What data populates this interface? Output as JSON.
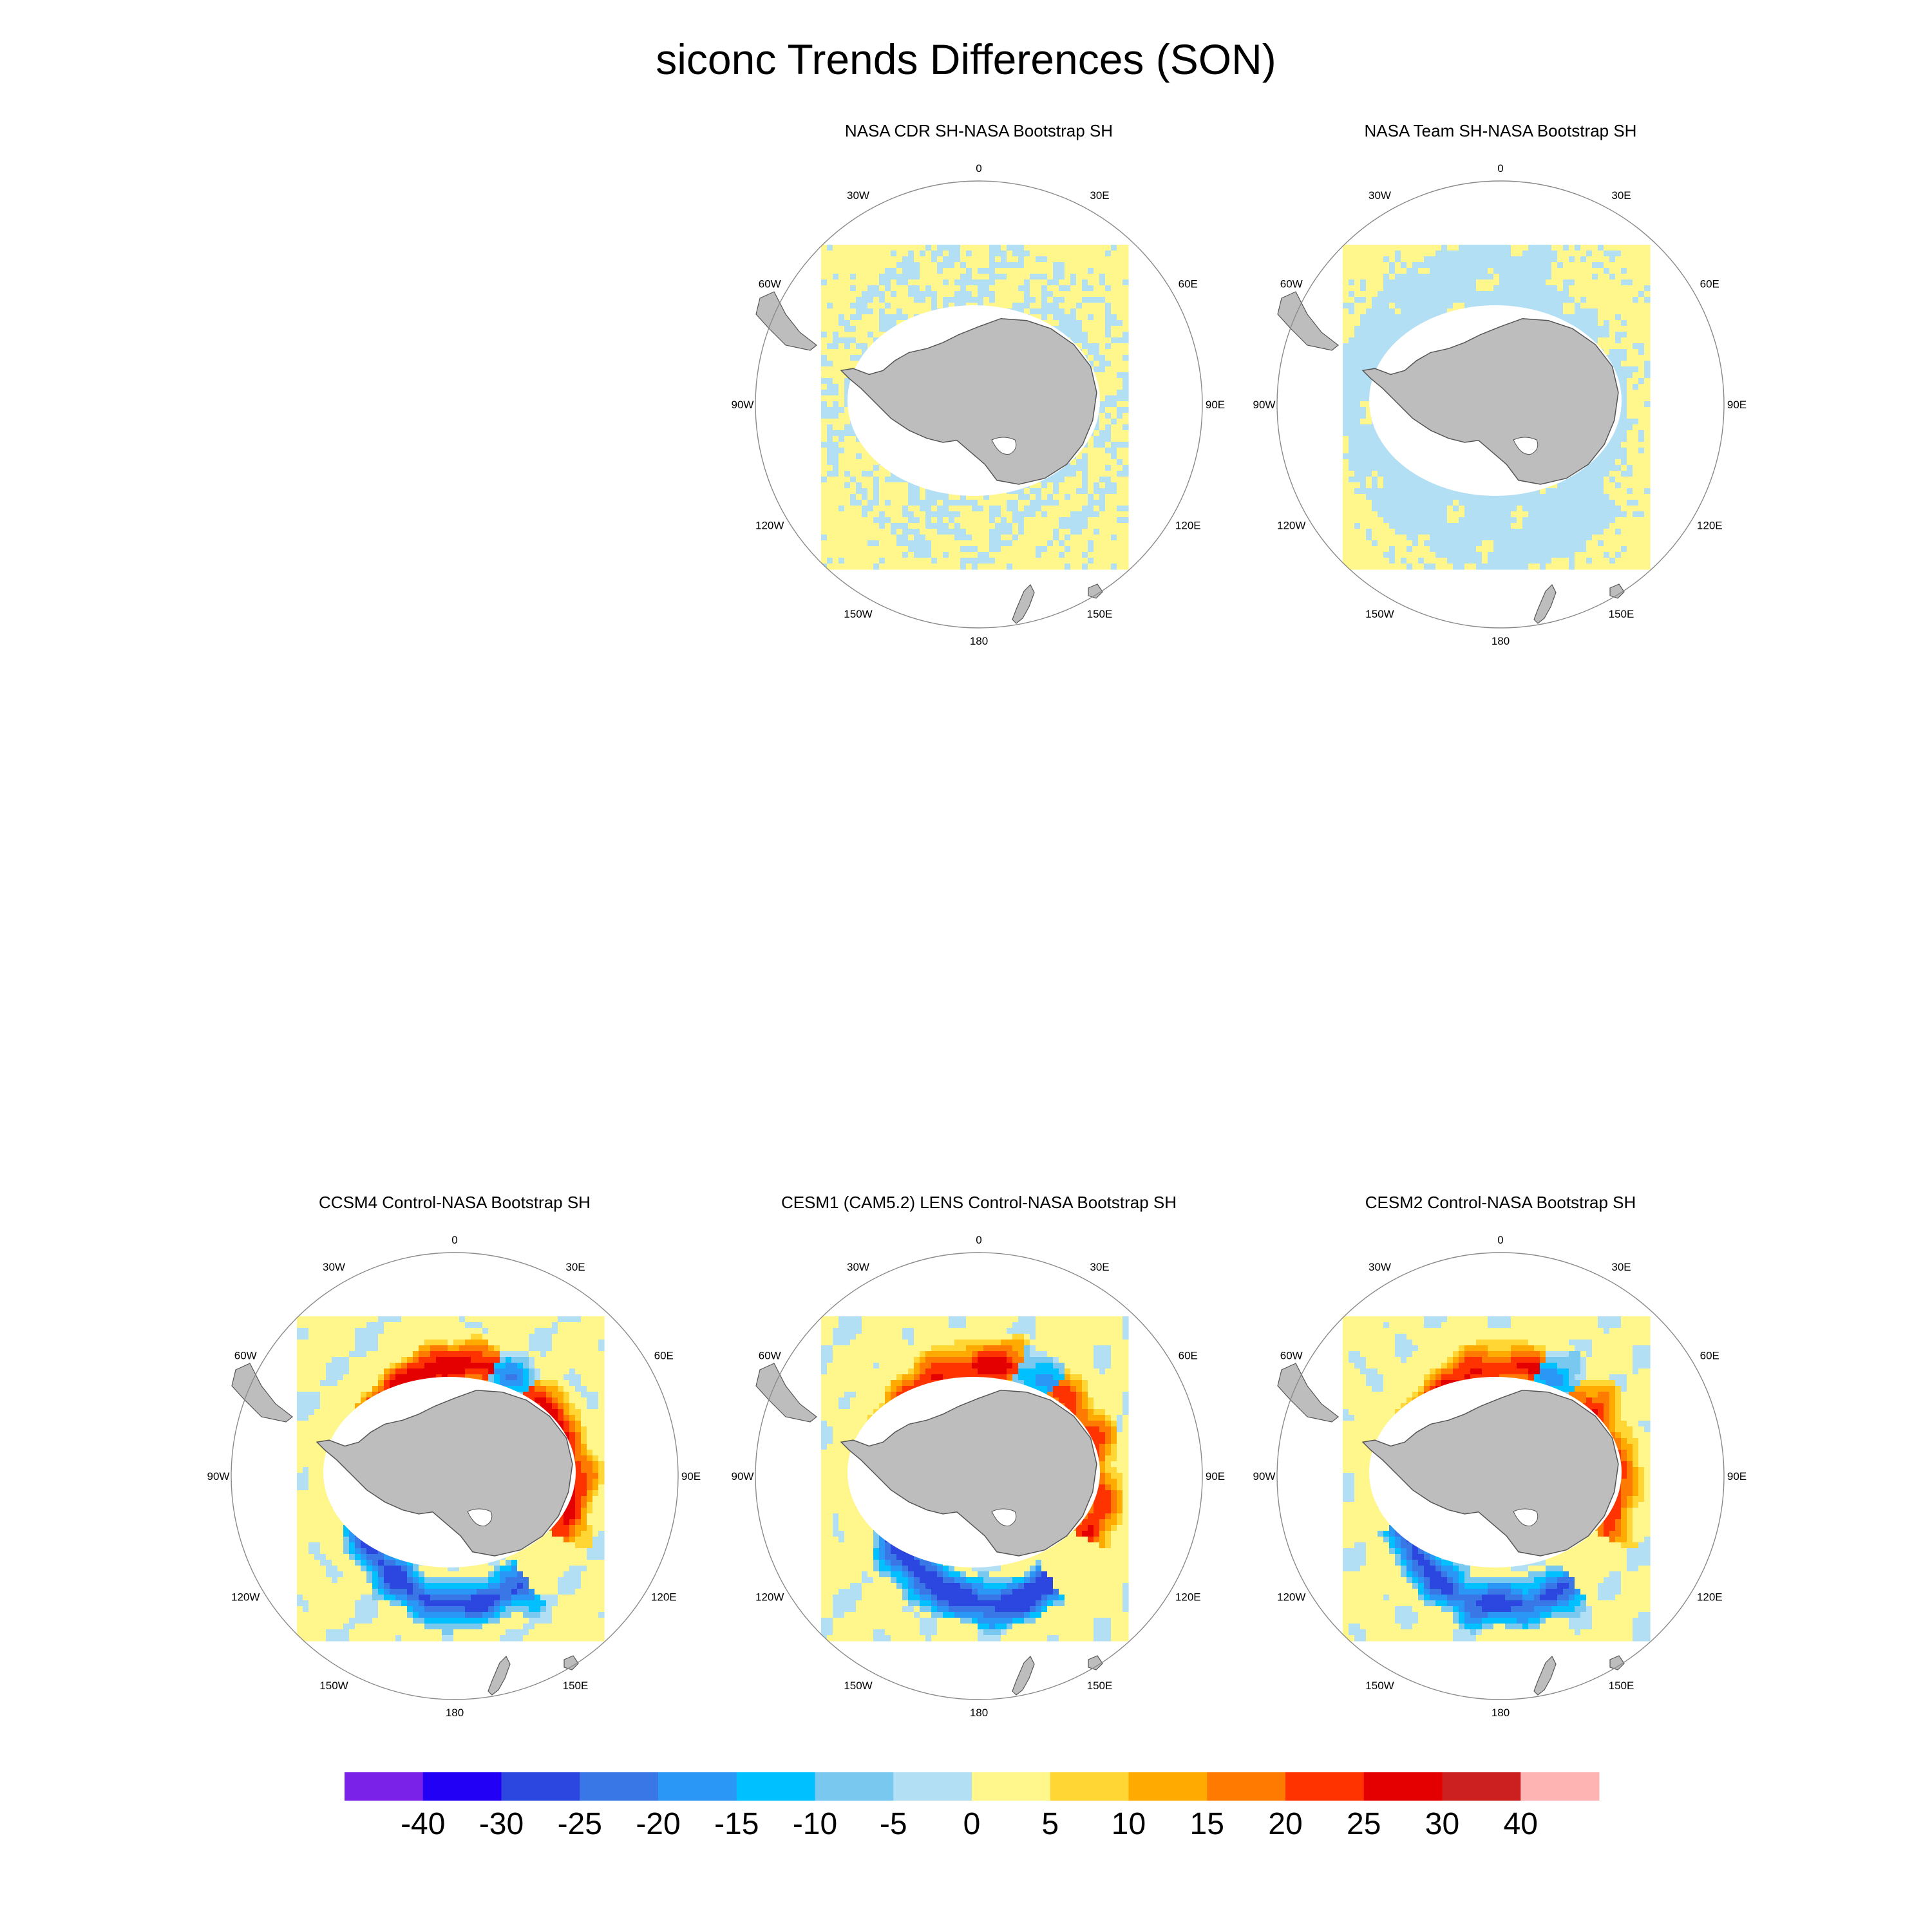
{
  "title": "siconc Trends Differences (SON)",
  "panels": [
    {
      "id": "cdr",
      "title": "NASA CDR SH-NASA Bootstrap SH",
      "pattern": "obs_faint"
    },
    {
      "id": "team",
      "title": "NASA Team SH-NASA Bootstrap SH",
      "pattern": "obs_negative"
    },
    {
      "id": "ccsm4",
      "title": "CCSM4 Control-NASA Bootstrap SH",
      "pattern": "model_ccsm4"
    },
    {
      "id": "cesm1",
      "title": "CESM1 (CAM5.2) LENS Control-NASA Bootstrap SH",
      "pattern": "model_cesm1"
    },
    {
      "id": "cesm2",
      "title": "CESM2 Control-NASA Bootstrap SH",
      "pattern": "model_cesm2"
    }
  ],
  "longitude_labels": [
    "0",
    "30E",
    "60E",
    "90E",
    "120E",
    "150E",
    "180",
    "150W",
    "120W",
    "90W",
    "60W",
    "30W"
  ],
  "colorbar": {
    "labels": [
      "-40",
      "-30",
      "-25",
      "-20",
      "-15",
      "-10",
      "-5",
      "0",
      "5",
      "10",
      "15",
      "20",
      "25",
      "30",
      "40"
    ],
    "colors": [
      "#7b22e8",
      "#2200f5",
      "#2c47e0",
      "#3a77e6",
      "#2a96f5",
      "#00c0ff",
      "#78c8f0",
      "#b2dff4",
      "#fff68c",
      "#ffd633",
      "#ffaa00",
      "#ff7a00",
      "#ff3300",
      "#e40000",
      "#cc2020",
      "#ffb4b4"
    ]
  }
}
